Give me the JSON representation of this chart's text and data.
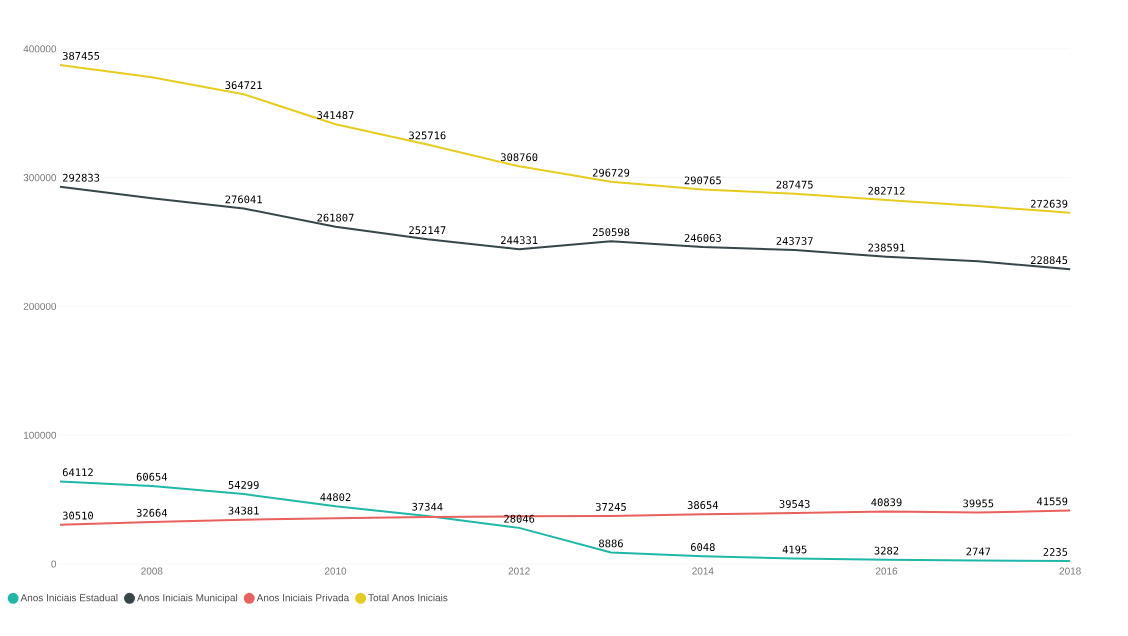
{
  "chart_data": {
    "type": "line",
    "x": [
      2007,
      2008,
      2009,
      2010,
      2011,
      2012,
      2013,
      2014,
      2015,
      2016,
      2017,
      2018
    ],
    "xlim": [
      2007,
      2018
    ],
    "xticks": [
      2008,
      2010,
      2012,
      2014,
      2016,
      2018
    ],
    "ylim": [
      0,
      400000
    ],
    "yticks": [
      0,
      100000,
      200000,
      300000,
      400000
    ],
    "grid": "y",
    "legend": "bottom left",
    "marker": "none",
    "line_style": "solid",
    "series": [
      {
        "name": "Anos Iniciais Estadual",
        "color": "#1fb8a8",
        "values": [
          64112,
          60654,
          54299,
          44802,
          37344,
          28046,
          8886,
          6048,
          4195,
          3282,
          2747,
          2235
        ],
        "value_labels": [
          "64112",
          "60654",
          "54299",
          "44802",
          "37344",
          "28046",
          "8886",
          "6048",
          "4195",
          "3282",
          "2747",
          "2235"
        ]
      },
      {
        "name": "Anos Iniciais Municipal",
        "color": "#374649",
        "values": [
          292833,
          284000,
          276041,
          261807,
          252147,
          244331,
          250598,
          246063,
          243737,
          238591,
          235000,
          228845
        ],
        "value_labels": [
          "292833",
          null,
          "276041",
          "261807",
          "252147",
          "244331",
          "250598",
          "246063",
          "243737",
          "238591",
          null,
          "228845"
        ]
      },
      {
        "name": "Anos Iniciais Privada",
        "color": "#e8615c",
        "values": [
          30510,
          32664,
          34381,
          35500,
          36500,
          37000,
          37245,
          38654,
          39543,
          40839,
          39955,
          41559
        ],
        "value_labels": [
          "30510",
          "32664",
          "34381",
          null,
          null,
          null,
          "37245",
          "38654",
          "39543",
          "40839",
          "39955",
          "41559"
        ]
      },
      {
        "name": "Total Anos Iniciais",
        "color": "#e6cc1f",
        "values": [
          387455,
          378000,
          364721,
          341487,
          325716,
          308760,
          296729,
          290765,
          287475,
          282712,
          278000,
          272639
        ],
        "value_labels": [
          "387455",
          null,
          "364721",
          "341487",
          "325716",
          "308760",
          "296729",
          "290765",
          "287475",
          "282712",
          null,
          "272639"
        ]
      }
    ]
  }
}
